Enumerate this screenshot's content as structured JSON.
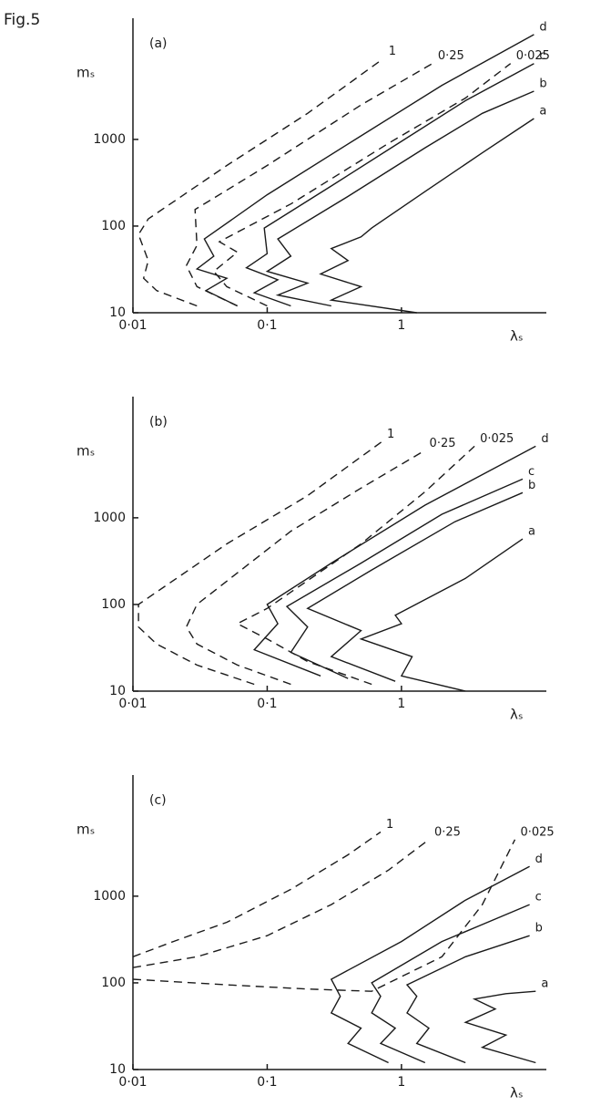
{
  "figure_label": "Fig.5",
  "chart_data": [
    {
      "type": "line",
      "panel_label": "(a)",
      "ylabel": "mₛ",
      "xlabel": "λₛ",
      "xscale": "log",
      "yscale": "log",
      "color": "#1a1a1a",
      "xlim": [
        0.01,
        12
      ],
      "ylim": [
        10,
        25000
      ],
      "xticks": [
        {
          "value": 0.01,
          "label": "0·01"
        },
        {
          "value": 0.1,
          "label": "0·1"
        },
        1
      ],
      "yticks": [
        10,
        100,
        1000
      ],
      "series": [
        {
          "name": "d",
          "style": "solid",
          "x": [
            0.06,
            0.035,
            0.05,
            0.03,
            0.04,
            0.034,
            0.1,
            0.5,
            2,
            9.7
          ],
          "values": [
            12,
            18,
            25,
            32,
            45,
            71,
            230,
            1100,
            4200,
            16200
          ]
        },
        {
          "name": "c",
          "style": "solid",
          "x": [
            0.15,
            0.08,
            0.12,
            0.07,
            0.1,
            0.095,
            0.3,
            1,
            3,
            9.7
          ],
          "values": [
            12,
            17,
            24,
            33,
            48,
            95,
            290,
            950,
            2800,
            7500
          ]
        },
        {
          "name": "b",
          "style": "solid",
          "x": [
            0.3,
            0.12,
            0.2,
            0.1,
            0.15,
            0.12,
            0.4,
            1.5,
            4,
            9.7
          ],
          "values": [
            12,
            16,
            22,
            30,
            45,
            71,
            220,
            800,
            2000,
            3600
          ]
        },
        {
          "name": "a",
          "style": "solid",
          "x": [
            1.3,
            0.3,
            0.5,
            0.25,
            0.4,
            0.3,
            0.5,
            0.6,
            1.5,
            4,
            9.7
          ],
          "values": [
            10,
            14,
            20,
            28,
            40,
            55,
            75,
            95,
            250,
            700,
            1740
          ]
        },
        {
          "name": "1",
          "style": "dashed",
          "x": [
            0.03,
            0.015,
            0.012,
            0.013,
            0.011,
            0.013,
            0.05,
            0.2,
            0.73
          ],
          "values": [
            12,
            18,
            25,
            40,
            80,
            121,
            500,
            2000,
            8500
          ]
        },
        {
          "name": "0·25",
          "style": "dashed",
          "x": [
            0.06,
            0.03,
            0.025,
            0.03,
            0.029,
            0.1,
            0.5,
            1.7
          ],
          "values": [
            12,
            20,
            35,
            60,
            155,
            500,
            2500,
            7500
          ]
        },
        {
          "name": "0·025",
          "style": "dashed",
          "x": [
            0.1,
            0.05,
            0.04,
            0.06,
            0.044,
            0.15,
            0.8,
            3,
            6.5
          ],
          "values": [
            12,
            20,
            30,
            50,
            66,
            180,
            900,
            3000,
            7500
          ]
        }
      ]
    },
    {
      "type": "line",
      "panel_label": "(b)",
      "ylabel": "mₛ",
      "xlabel": "λₛ",
      "xscale": "log",
      "yscale": "log",
      "color": "#1a1a1a",
      "xlim": [
        0.01,
        12
      ],
      "ylim": [
        10,
        25000
      ],
      "xticks": [
        {
          "value": 0.01,
          "label": "0·01"
        },
        {
          "value": 0.1,
          "label": "0·1"
        },
        1
      ],
      "yticks": [
        10,
        100,
        1000
      ],
      "series": [
        {
          "name": "d",
          "style": "solid",
          "x": [
            0.25,
            0.08,
            0.12,
            0.1,
            0.3,
            1.5,
            10
          ],
          "values": [
            15,
            30,
            60,
            100,
            300,
            1400,
            6700
          ]
        },
        {
          "name": "c",
          "style": "solid",
          "x": [
            0.4,
            0.15,
            0.2,
            0.14,
            0.5,
            2,
            8
          ],
          "values": [
            14,
            28,
            55,
            95,
            300,
            1100,
            2800
          ]
        },
        {
          "name": "b",
          "style": "solid",
          "x": [
            0.9,
            0.3,
            0.5,
            0.2,
            0.6,
            2.5,
            8
          ],
          "values": [
            13,
            25,
            50,
            90,
            250,
            900,
            1950
          ]
        },
        {
          "name": "a",
          "style": "solid",
          "x": [
            3,
            1,
            1.2,
            0.5,
            1,
            0.9,
            3,
            8
          ],
          "values": [
            10,
            15,
            25,
            40,
            60,
            75,
            200,
            570
          ]
        },
        {
          "name": "1",
          "style": "dashed",
          "x": [
            0.08,
            0.03,
            0.015,
            0.011,
            0.011,
            0.05,
            0.2,
            0.71
          ],
          "values": [
            12,
            20,
            35,
            55,
            100,
            500,
            1800,
            7500
          ]
        },
        {
          "name": "0·25",
          "style": "dashed",
          "x": [
            0.15,
            0.06,
            0.03,
            0.025,
            0.03,
            0.15,
            0.5,
            1.47
          ],
          "values": [
            12,
            20,
            35,
            55,
            100,
            700,
            2200,
            5900
          ]
        },
        {
          "name": "0·025",
          "style": "dashed",
          "x": [
            0.6,
            0.2,
            0.1,
            0.06,
            0.1,
            0.5,
            1.5,
            3.5
          ],
          "values": [
            12,
            22,
            40,
            60,
            90,
            500,
            2000,
            6700
          ]
        }
      ]
    },
    {
      "type": "line",
      "panel_label": "(c)",
      "ylabel": "mₛ",
      "xlabel": "λₛ",
      "xscale": "log",
      "yscale": "log",
      "color": "#1a1a1a",
      "xlim": [
        0.01,
        12
      ],
      "ylim": [
        10,
        25000
      ],
      "xticks": [
        {
          "value": 0.01,
          "label": "0·01"
        },
        {
          "value": 0.1,
          "label": "0·1"
        },
        1
      ],
      "yticks": [
        10,
        100,
        1000
      ],
      "series": [
        {
          "name": "d",
          "style": "solid",
          "x": [
            0.8,
            0.4,
            0.5,
            0.3,
            0.35,
            0.3,
            1,
            3,
            9
          ],
          "values": [
            12,
            20,
            30,
            45,
            70,
            110,
            300,
            900,
            2200
          ]
        },
        {
          "name": "c",
          "style": "solid",
          "x": [
            1.5,
            0.7,
            0.9,
            0.6,
            0.7,
            0.6,
            2,
            9
          ],
          "values": [
            12,
            20,
            30,
            45,
            70,
            100,
            300,
            800
          ]
        },
        {
          "name": "b",
          "style": "solid",
          "x": [
            3,
            1.3,
            1.6,
            1.1,
            1.3,
            1.1,
            3,
            9
          ],
          "values": [
            12,
            20,
            30,
            45,
            70,
            95,
            200,
            350
          ]
        },
        {
          "name": "a",
          "style": "solid",
          "x": [
            10,
            4,
            6,
            3,
            5,
            3.5,
            6,
            10
          ],
          "values": [
            12,
            18,
            25,
            35,
            50,
            65,
            75,
            80
          ]
        },
        {
          "name": "1",
          "style": "dashed",
          "x": [
            0.01,
            0.02,
            0.05,
            0.15,
            0.4,
            0.7
          ],
          "values": [
            200,
            300,
            500,
            1200,
            3000,
            5500
          ]
        },
        {
          "name": "0·25",
          "style": "dashed",
          "x": [
            0.01,
            0.03,
            0.1,
            0.3,
            0.8,
            1.6
          ],
          "values": [
            150,
            200,
            350,
            800,
            2000,
            4500
          ]
        },
        {
          "name": "0·025",
          "style": "dashed",
          "x": [
            0.01,
            0.05,
            0.2,
            0.6,
            2,
            4,
            7
          ],
          "values": [
            110,
            95,
            85,
            80,
            200,
            800,
            4500
          ]
        }
      ]
    }
  ]
}
